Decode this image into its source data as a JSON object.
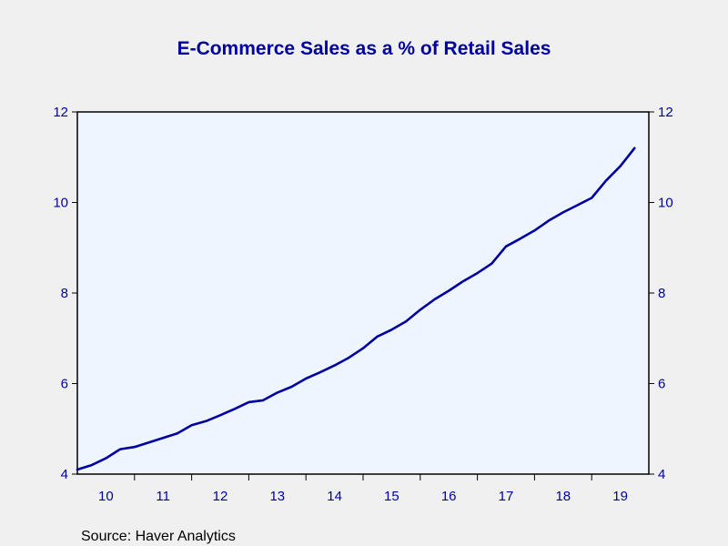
{
  "chart_data": {
    "type": "line",
    "title": "E-Commerce Sales as a % of Retail Sales",
    "source": "Source:  Haver Analytics",
    "xlabel": "",
    "ylabel": "",
    "ylim": [
      4,
      12
    ],
    "yticks": [
      "4",
      "6",
      "8",
      "10",
      "12"
    ],
    "xlim": [
      2009.5,
      2019.5
    ],
    "xticks": [
      {
        "label": "10",
        "center": 2010.0
      },
      {
        "label": "11",
        "center": 2011.0
      },
      {
        "label": "12",
        "center": 2012.0
      },
      {
        "label": "13",
        "center": 2013.0
      },
      {
        "label": "14",
        "center": 2014.0
      },
      {
        "label": "15",
        "center": 2015.0
      },
      {
        "label": "16",
        "center": 2016.0
      },
      {
        "label": "17",
        "center": 2017.0
      },
      {
        "label": "18",
        "center": 2018.0
      },
      {
        "label": "19",
        "center": 2019.0
      }
    ],
    "year_boundaries": [
      2010.5,
      2011.5,
      2012.5,
      2013.5,
      2014.5,
      2015.5,
      2016.5,
      2017.5,
      2018.5
    ],
    "grid": false,
    "dual_axis": true,
    "series": [
      {
        "color": "#0000a0",
        "x": [
          2009.5,
          2009.75,
          2010.0,
          2010.25,
          2010.5,
          2010.75,
          2011.0,
          2011.25,
          2011.5,
          2011.75,
          2012.0,
          2012.25,
          2012.5,
          2012.75,
          2013.0,
          2013.25,
          2013.5,
          2013.75,
          2014.0,
          2014.25,
          2014.5,
          2014.75,
          2015.0,
          2015.25,
          2015.5,
          2015.75,
          2016.0,
          2016.25,
          2016.5,
          2016.75,
          2017.0,
          2017.25,
          2017.5,
          2017.75,
          2018.0,
          2018.25,
          2018.5,
          2018.75,
          2019.0,
          2019.25
        ],
        "y": [
          4.1,
          4.2,
          4.35,
          4.55,
          4.6,
          4.7,
          4.8,
          4.9,
          5.08,
          5.17,
          5.3,
          5.44,
          5.59,
          5.63,
          5.8,
          5.93,
          6.11,
          6.25,
          6.4,
          6.57,
          6.78,
          7.04,
          7.19,
          7.37,
          7.63,
          7.86,
          8.05,
          8.26,
          8.44,
          8.65,
          9.03,
          9.2,
          9.38,
          9.6,
          9.78,
          9.94,
          10.1,
          10.48,
          10.8,
          11.2
        ]
      }
    ]
  }
}
